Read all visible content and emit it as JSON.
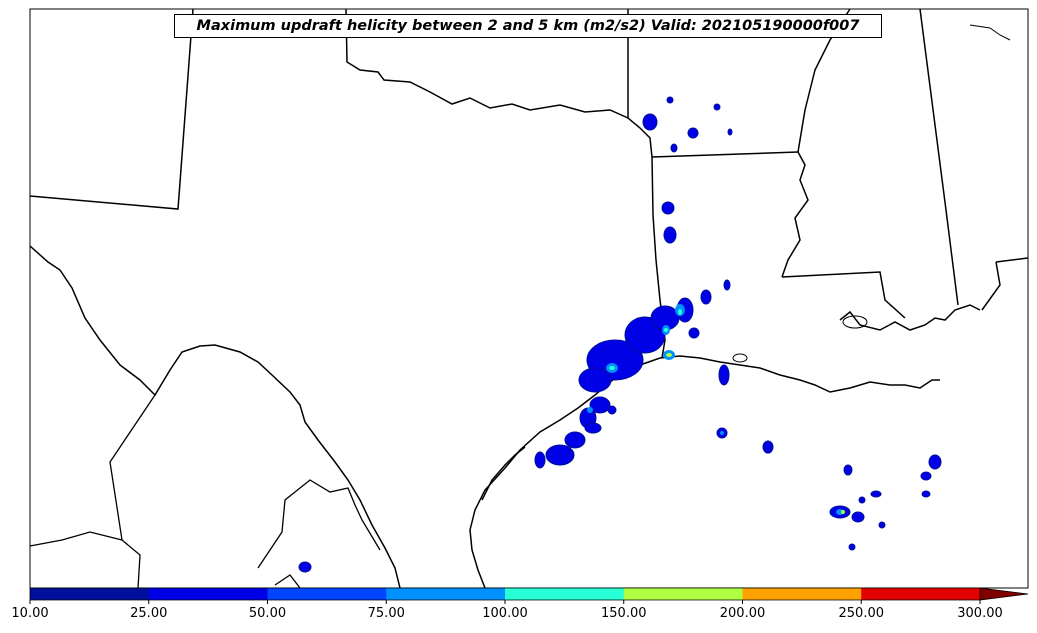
{
  "title": "Maximum updraft helicity between 2 and 5 km (m2/s2) Valid: 202105190000f007",
  "colorbar": {
    "ticks": [
      "10.00",
      "25.00",
      "50.00",
      "75.00",
      "100.00",
      "150.00",
      "200.00",
      "250.00",
      "300.00"
    ],
    "colors": [
      "#00109a",
      "#0000e6",
      "#0044ff",
      "#0091ff",
      "#27ffd4",
      "#b0ff43",
      "#ffa200",
      "#e30000"
    ],
    "extend_color": "#800000"
  }
}
